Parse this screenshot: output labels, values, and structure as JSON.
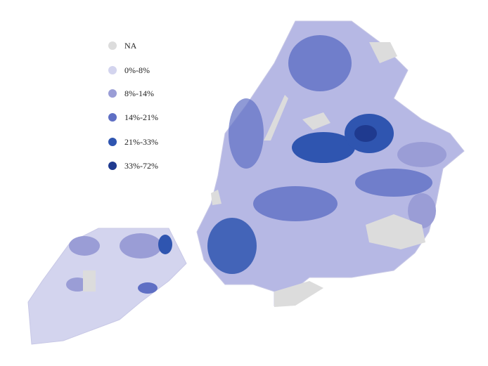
{
  "legend": {
    "items": [
      {
        "label": "NA",
        "color": "#dcdcdc"
      },
      {
        "label": "0%-8%",
        "color": "#d3d4ee"
      },
      {
        "label": "8%-14%",
        "color": "#9a9dd6"
      },
      {
        "label": "14%-21%",
        "color": "#5f6fc4"
      },
      {
        "label": "21%-33%",
        "color": "#2f55b0"
      },
      {
        "label": "33%-72%",
        "color": "#1f3a8f"
      }
    ]
  }
}
